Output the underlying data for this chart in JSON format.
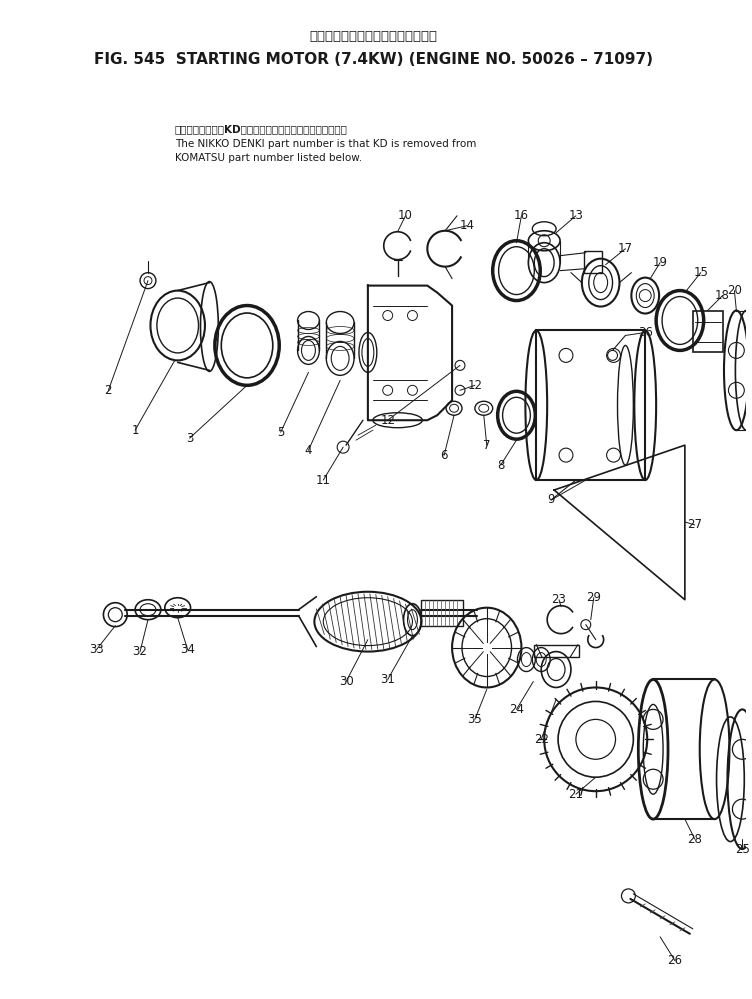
{
  "title_japanese": "スターティングモータ　　適用号機",
  "title_english": "FIG. 545  STARTING MOTOR (7.4KW) (ENGINE NO. 50026 – 71097)",
  "note_jp": "品番のメーカ記号KDを除いたものが日興電機の品番です。",
  "note_en1": "The NIKKO DENKI part number is that KD is removed from",
  "note_en2": "KOMATSU part number listed below.",
  "bg_color": "#ffffff",
  "figsize": [
    7.52,
    9.99
  ],
  "dpi": 100
}
